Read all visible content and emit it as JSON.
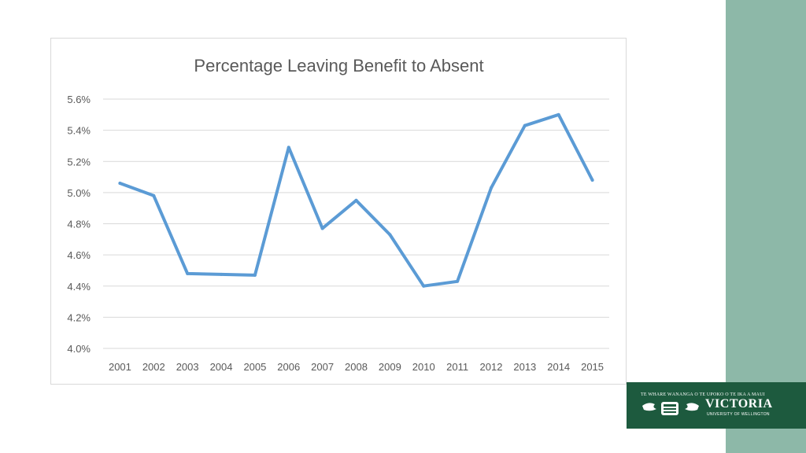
{
  "slide": {
    "accent_color": "#8db8a8",
    "logo": {
      "motto": "TE WHARE WĀNANGA O TE ŪPOKO O TE IKA A MĀUI",
      "name": "VICTORIA",
      "subtitle": "UNIVERSITY OF WELLINGTON",
      "background": "#1d5a3e"
    }
  },
  "chart_data": {
    "type": "line",
    "title": "Percentage Leaving Benefit to Absent",
    "xlabel": "",
    "ylabel": "",
    "categories": [
      "2001",
      "2002",
      "2003",
      "2004",
      "2005",
      "2006",
      "2007",
      "2008",
      "2009",
      "2010",
      "2011",
      "2012",
      "2013",
      "2014",
      "2015"
    ],
    "series": [
      {
        "values": [
          5.06,
          4.98,
          4.48,
          4.475,
          4.47,
          5.29,
          4.77,
          4.95,
          4.73,
          4.4,
          4.43,
          5.03,
          5.43,
          5.5,
          5.08
        ],
        "color": "#5b9bd5"
      }
    ],
    "ylim": [
      4.0,
      5.6
    ],
    "yticks": [
      4.0,
      4.2,
      4.4,
      4.6,
      4.8,
      5.0,
      5.2,
      5.4,
      5.6
    ],
    "ytick_labels": [
      "4.0%",
      "4.2%",
      "4.4%",
      "4.6%",
      "4.8%",
      "5.0%",
      "5.2%",
      "5.4%",
      "5.6%"
    ],
    "grid": true,
    "legend": "none"
  }
}
